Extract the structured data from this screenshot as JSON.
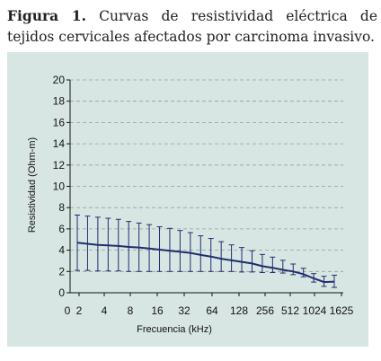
{
  "figure": {
    "label": "Figura 1.",
    "caption": " Curvas de resistividad eléctrica de tejidos cervicales afectados por carcinoma invasivo."
  },
  "colors": {
    "panel_bg": "#d8e6e3",
    "series": "#1f2d6e",
    "grid": "#9a9a9a"
  },
  "chart_data": {
    "type": "line",
    "xlabel": "Frecuencia (kHz)",
    "ylabel": "Resistividad (Ohm-m)",
    "ylim": [
      0,
      20
    ],
    "y_ticks": [
      0,
      2,
      4,
      6,
      8,
      10,
      12,
      14,
      16,
      18,
      20
    ],
    "x_tick_labels": [
      "0",
      "2",
      "4",
      "8",
      "16",
      "32",
      "64",
      "128",
      "256",
      "512",
      "1024",
      "1625"
    ],
    "grid": "horizontal-dashed",
    "series": [
      {
        "values": [
          4.7,
          4.6,
          4.5,
          4.45,
          4.4,
          4.3,
          4.25,
          4.15,
          4.05,
          3.95,
          3.85,
          3.75,
          3.55,
          3.4,
          3.2,
          3.05,
          2.9,
          2.75,
          2.5,
          2.35,
          2.15,
          2.0,
          1.75,
          1.35,
          1.0,
          1.05
        ],
        "lower": [
          2.1,
          2.1,
          2.05,
          2.05,
          2.05,
          2.0,
          2.0,
          2.0,
          2.0,
          2.0,
          2.0,
          2.0,
          2.0,
          2.0,
          2.0,
          2.0,
          1.95,
          1.95,
          1.9,
          1.9,
          1.85,
          1.7,
          1.5,
          1.0,
          0.6,
          0.5
        ],
        "upper": [
          7.3,
          7.2,
          7.1,
          7.0,
          6.9,
          6.7,
          6.55,
          6.4,
          6.2,
          6.05,
          5.85,
          5.65,
          5.35,
          5.1,
          4.8,
          4.5,
          4.25,
          3.95,
          3.6,
          3.35,
          3.05,
          2.7,
          2.3,
          1.8,
          1.55,
          1.65
        ]
      }
    ]
  }
}
